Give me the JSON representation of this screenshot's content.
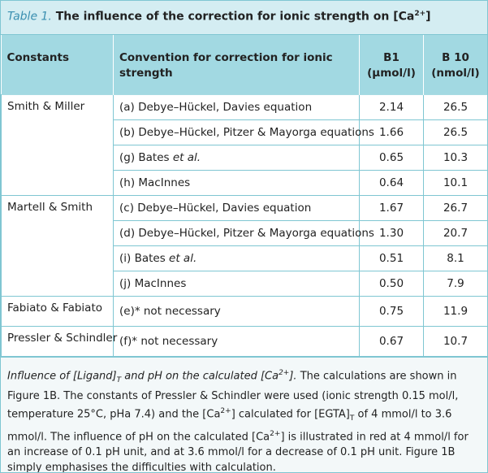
{
  "caption": [
    {
      "text": "Table 1.",
      "style": "label"
    },
    {
      "text": " The influence of the correction for ionic strength on [Ca",
      "style": "b"
    },
    {
      "text": "2+",
      "style": "bsup"
    },
    {
      "text": "]",
      "style": "b"
    }
  ],
  "table": {
    "header": [
      [
        "Constants"
      ],
      [
        "Convention for correction for ionic strength"
      ],
      [
        "B1",
        "(µmol/l)"
      ],
      [
        "B 10",
        "(nmol/l)"
      ]
    ],
    "groups": [
      {
        "constants": "Smith & Miller",
        "rows": [
          [
            "(a) Debye–Hückel, Davies equation",
            "2.14",
            "26.5"
          ],
          [
            "(b) Debye–Hückel, Pitzer & Mayorga equations",
            "1.66",
            "26.5"
          ],
          [
            [
              {
                "text": "(g) Bates ",
                "style": "n"
              },
              {
                "text": "et al.",
                "style": "i"
              }
            ],
            "0.65",
            "10.3"
          ],
          [
            "(h) MacInnes",
            "0.64",
            "10.1"
          ]
        ]
      },
      {
        "constants": "Martell & Smith",
        "rows": [
          [
            "(c) Debye–Hückel, Davies equation",
            "1.67",
            "26.7"
          ],
          [
            "(d) Debye–Hückel, Pitzer & Mayorga equations",
            "1.30",
            "20.7"
          ],
          [
            [
              {
                "text": "(i) Bates ",
                "style": "n"
              },
              {
                "text": "et al.",
                "style": "i"
              }
            ],
            "0.51",
            "8.1"
          ],
          [
            "(j) MacInnes",
            "0.50",
            "7.9"
          ]
        ]
      },
      {
        "constants": "Fabiato & Fabiato",
        "rows": [
          [
            "(e)* not necessary",
            "0.75",
            "11.9"
          ]
        ]
      },
      {
        "constants": "Pressler & Schindler",
        "rows": [
          [
            "(f)* not necessary",
            "0.67",
            "10.7"
          ]
        ]
      }
    ]
  },
  "footnote": [
    {
      "text": "Influence of [Ligand]",
      "style": "i"
    },
    {
      "text": "T",
      "style": "isub"
    },
    {
      "text": " and pH on the calculated [Ca",
      "style": "i"
    },
    {
      "text": "2+",
      "style": "isup"
    },
    {
      "text": "].",
      "style": "i"
    },
    {
      "text": " The calculations are shown in Figure 1B. The constants of Pressler & Schindler were used (ionic strength 0.15 mol/l, temperature 25°C, pHa 7.4) and the [Ca",
      "style": "n"
    },
    {
      "text": "2+",
      "style": "sup"
    },
    {
      "text": "] calculated for [EGTA]",
      "style": "n"
    },
    {
      "text": "T",
      "style": "sub"
    },
    {
      "text": " of 4 mmol/l to 3.6 mmol/l. The influence of pH on the calculated [Ca",
      "style": "n"
    },
    {
      "text": "2+",
      "style": "sup"
    },
    {
      "text": "] is illustrated in red at 4 mmol/l for an increase of 0.1 pH unit, and at 3.6 mmol/l for a decrease of 0.1 pH unit. Figure 1B simply emphasises the difficulties with calculation.",
      "style": "n"
    }
  ]
}
